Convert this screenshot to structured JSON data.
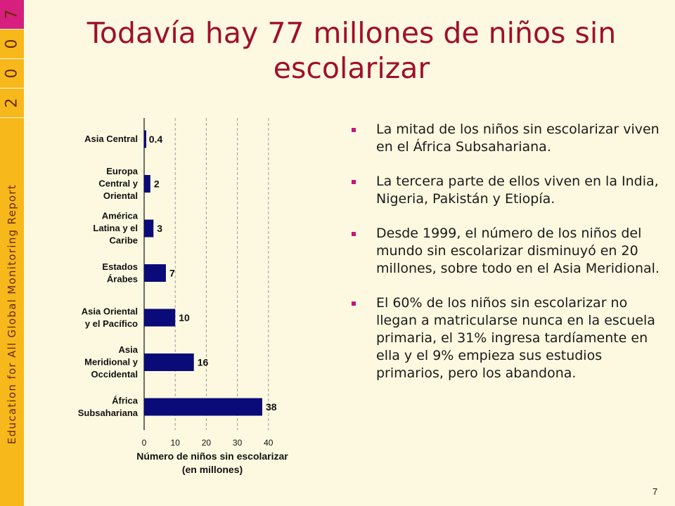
{
  "sidebar": {
    "year_digits": [
      "7",
      "0",
      "0",
      "2"
    ],
    "report_name": "Education for All Global Monitoring Report"
  },
  "slide": {
    "title_line1": "Todavía hay 77 millones de niños sin",
    "title_line2": "escolarizar",
    "page_number": "7"
  },
  "chart_data": {
    "type": "bar",
    "orientation": "horizontal",
    "categories": [
      [
        "Asia Central"
      ],
      [
        "Europa",
        "Central y",
        "Oriental"
      ],
      [
        "América",
        "Latina y el",
        "Caribe"
      ],
      [
        "Estados",
        "Árabes"
      ],
      [
        "Asia Oriental",
        "y el Pacífico"
      ],
      [
        "Asia",
        "Meridional y",
        "Occidental"
      ],
      [
        "África",
        "Subsahariana"
      ]
    ],
    "values": [
      0.4,
      2,
      3,
      7,
      10,
      16,
      38
    ],
    "value_labels": [
      "0.4",
      "2",
      "3",
      "7",
      "10",
      "16",
      "38"
    ],
    "xticks": [
      0,
      10,
      20,
      30,
      40
    ],
    "xlim": [
      0,
      40
    ],
    "xlabel_line1": "Número de niños sin escolarizar",
    "xlabel_line2": "(en millones)",
    "grid": "vertical dashed",
    "colors": {
      "bar": "#0a0a78"
    }
  },
  "bullets": [
    "La mitad de los niños sin escolarizar viven en el África Subsahariana.",
    "La tercera parte de ellos viven en la India, Nigeria, Pakistán y Etiopía.",
    "Desde 1999, el número de los niños del mundo sin escolarizar disminuyó en 20 millones, sobre todo en el Asia Meridional.",
    "El 60% de los niños sin escolarizar no llegan a matricularse nunca en la escuela primaria, el 31% ingresa tardíamente en ella y el 9% empieza sus estudios primarios, pero los abandona."
  ],
  "colors": {
    "background": "#fdf9e0",
    "sidebar": "#f7b81c",
    "year_first_box": "#d61f7e",
    "title": "#a0102a",
    "bullet_marker": "#c8157c"
  }
}
